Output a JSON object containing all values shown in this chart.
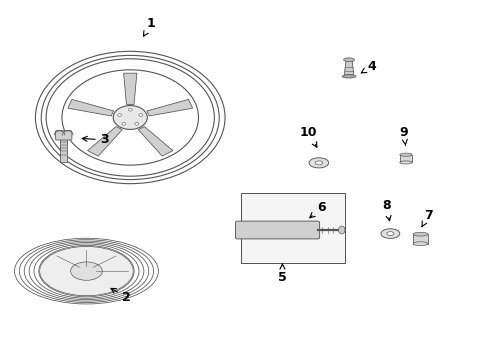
{
  "background_color": "#ffffff",
  "line_color": "#555555",
  "label_color": "#000000",
  "fig_width": 4.89,
  "fig_height": 3.6,
  "dpi": 100
}
